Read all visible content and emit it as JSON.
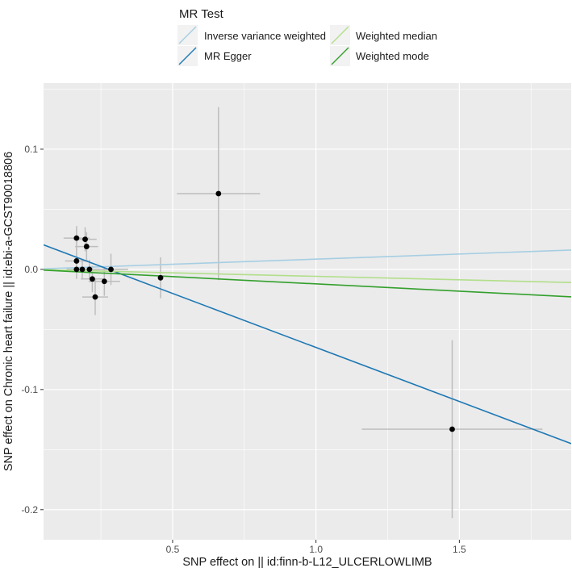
{
  "chart_data": {
    "type": "scatter",
    "title": "",
    "xlabel": "SNP effect on  || id:finn-b-L12_ULCERLOWLIMB",
    "ylabel": "SNP effect on Chronic heart failure || id:ebi-a-GCST90018806",
    "xlim": [
      0.05,
      1.89
    ],
    "ylim": [
      -0.225,
      0.155
    ],
    "x_ticks": [
      0.5,
      1.0,
      1.5
    ],
    "x_tick_labels": [
      "0.5",
      "1.0",
      "1.5"
    ],
    "y_ticks": [
      -0.2,
      -0.1,
      0.0,
      0.1
    ],
    "y_tick_labels": [
      "-0.2",
      "-0.1",
      "0.0",
      "0.1"
    ],
    "grid": true,
    "legend": {
      "title": "MR Test",
      "position": "top",
      "entries": [
        {
          "label": "Inverse variance weighted",
          "color": "#a6cee3"
        },
        {
          "label": "MR Egger",
          "color": "#1f78b4"
        },
        {
          "label": "Weighted median",
          "color": "#b2df8a"
        },
        {
          "label": "Weighted mode",
          "color": "#33a02c"
        }
      ]
    },
    "lines": [
      {
        "method": "Inverse variance weighted",
        "color": "#a6cee3",
        "intercept": 0.0,
        "slope": 0.0085
      },
      {
        "method": "MR Egger",
        "color": "#1f78b4",
        "intercept": 0.0249,
        "slope": -0.0899
      },
      {
        "method": "Weighted median",
        "color": "#b2df8a",
        "intercept": 0.0,
        "slope": -0.0058
      },
      {
        "method": "Weighted mode",
        "color": "#33a02c",
        "intercept": 0.0,
        "slope": -0.0121
      }
    ],
    "points": [
      {
        "x": 0.165,
        "y": 0.026,
        "xerr": 0.045,
        "yerr": 0.01
      },
      {
        "x": 0.165,
        "y": 0.007,
        "xerr": 0.04,
        "yerr": 0.01
      },
      {
        "x": 0.165,
        "y": 0.0,
        "xerr": 0.035,
        "yerr": 0.008
      },
      {
        "x": 0.185,
        "y": 0.0,
        "xerr": 0.035,
        "yerr": 0.008
      },
      {
        "x": 0.195,
        "y": 0.025,
        "xerr": 0.04,
        "yerr": 0.01
      },
      {
        "x": 0.2,
        "y": 0.019,
        "xerr": 0.04,
        "yerr": 0.012
      },
      {
        "x": 0.21,
        "y": 0.0,
        "xerr": 0.035,
        "yerr": 0.008
      },
      {
        "x": 0.22,
        "y": -0.008,
        "xerr": 0.04,
        "yerr": 0.011
      },
      {
        "x": 0.23,
        "y": -0.023,
        "xerr": 0.045,
        "yerr": 0.015
      },
      {
        "x": 0.262,
        "y": -0.01,
        "xerr": 0.055,
        "yerr": 0.012
      },
      {
        "x": 0.285,
        "y": 0.0,
        "xerr": 0.06,
        "yerr": 0.013
      },
      {
        "x": 0.458,
        "y": -0.007,
        "xerr": 0.01,
        "yerr": 0.017
      },
      {
        "x": 0.66,
        "y": 0.063,
        "xerr": 0.145,
        "yerr": 0.072
      },
      {
        "x": 1.475,
        "y": -0.133,
        "xerr": 0.315,
        "yerr": 0.074
      }
    ],
    "styles": {
      "panel_background": "#ebebeb",
      "grid_color": "#ffffff",
      "point_color": "#000000",
      "errorbar_color": "#bdbdbd"
    }
  }
}
